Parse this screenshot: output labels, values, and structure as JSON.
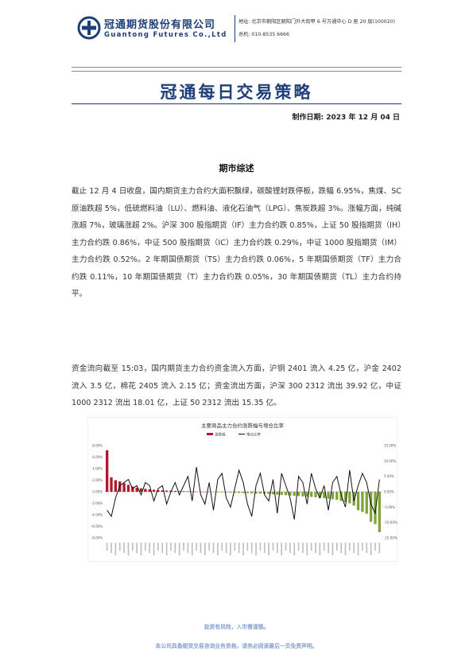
{
  "header": {
    "company_cn": "冠通期货股份有限公司",
    "company_en": "Guantong Futures Co.,Ltd",
    "address": "地址: 北京市朝阳区朝阳门外大街甲 6 号万通中心 D 座 20 层(100020)",
    "phone": "总机: 010-8535 6666",
    "colors": {
      "brand": "#1e3f7a"
    }
  },
  "document": {
    "title": "冠通每日交易策略",
    "date": "制作日期: 2023 年 12 月 04 日",
    "section_title": "期市综述",
    "paragraph1": "截止 12 月 4 日收盘，国内期货主力合约大面积飘绿，碳酸锂封跌停板，跌幅 6.95%，焦煤、SC 原油跌超 5%，低硫燃料油（LU）、燃料油、液化石油气（LPG）、焦炭跌超 3%。涨幅方面，纯碱涨超 7%，玻璃涨超 2%。沪深 300 股指期货（IF）主力合约跌 0.85%，上证 50 股指期货（IH）主力合约跌 0.86%，中证 500 股指期货（IC）主力合约跌 0.29%，中证 1000 股指期货（IM）主力合约跌 0.52%。2 年期国债期货（TS）主力合约跌 0.06%，5 年期国债期货（TF）主力合约跌 0.11%，10 年期国债期货（T）主力合约跌 0.05%，30 年期国债期货（TL）主力合约持平。",
    "paragraph2": "资金流向截至 15:03，国内期货主力合约资金流入方面，沪铜 2401 流入 4.25 亿，沪金 2402 流入 3.5 亿，棉花 2405 流入 2.15 亿；资金流出方面，沪深 300 2312 流出 39.92 亿，中证 1000 2312 流出 18.01 亿，上证 50 2312 流出 15.35 亿。"
  },
  "chart_data": {
    "type": "bar",
    "title": "主要商品主力合约涨跌幅与增仓比率",
    "legend": [
      "涨跌幅",
      "增仓比率"
    ],
    "legend_position": "top",
    "y_left_ticks": [
      "8.00%",
      "6.00%",
      "4.00%",
      "2.00%",
      "0.00%",
      "-2.00%",
      "-4.00%",
      "-6.00%",
      "-8.00%"
    ],
    "y_right_ticks": [
      "15.00%",
      "10.00%",
      "5.00%",
      "0.00%",
      "-5.00%",
      "-10.00%",
      "-15.00%"
    ],
    "ylim_left": [
      -8,
      8
    ],
    "ylim_right": [
      -15,
      15
    ],
    "bar_values": [
      7.2,
      2.5,
      2.0,
      1.8,
      1.5,
      1.2,
      0.9,
      0.7,
      0.6,
      0.5,
      0.4,
      0.35,
      0.3,
      0.25,
      0.2,
      0.2,
      0.15,
      0.12,
      0.1,
      0.08,
      0.05,
      0.03,
      0.02,
      0,
      -0.02,
      -0.05,
      -0.08,
      -0.1,
      -0.12,
      -0.15,
      -0.18,
      -0.2,
      -0.22,
      -0.25,
      -0.28,
      -0.3,
      -0.32,
      -0.35,
      -0.4,
      -0.45,
      -0.5,
      -0.55,
      -0.6,
      -0.65,
      -0.7,
      -0.75,
      -0.8,
      -0.85,
      -0.9,
      -0.95,
      -1.0,
      -1.1,
      -1.2,
      -1.3,
      -1.4,
      -1.6,
      -1.8,
      -2.0,
      -2.4,
      -3.2,
      -3.5,
      -3.8,
      -5.2,
      -5.6,
      -7.0
    ],
    "line_values": [
      -6,
      -8,
      -2,
      2,
      3,
      4,
      1,
      2,
      -1,
      3,
      2,
      -3,
      1,
      2,
      -4,
      0,
      3,
      -1,
      2,
      5,
      -3,
      8,
      -1,
      -4,
      3,
      -6,
      4,
      6,
      -2,
      -5,
      1,
      7,
      3,
      -4,
      -8,
      2,
      6,
      -1,
      -3,
      4,
      -7,
      6,
      2,
      -2,
      -9,
      5,
      3,
      -4,
      6,
      1,
      -2,
      2,
      -6,
      3,
      5,
      -1,
      -5,
      7,
      -3,
      2,
      6,
      3,
      -4,
      -7,
      4
    ]
  },
  "footer": {
    "line1": "投资有风险，入市需谨慎。",
    "line2": "本公司具备期货交易咨询业务资格，请务必阅读最后一页免责声明。"
  }
}
